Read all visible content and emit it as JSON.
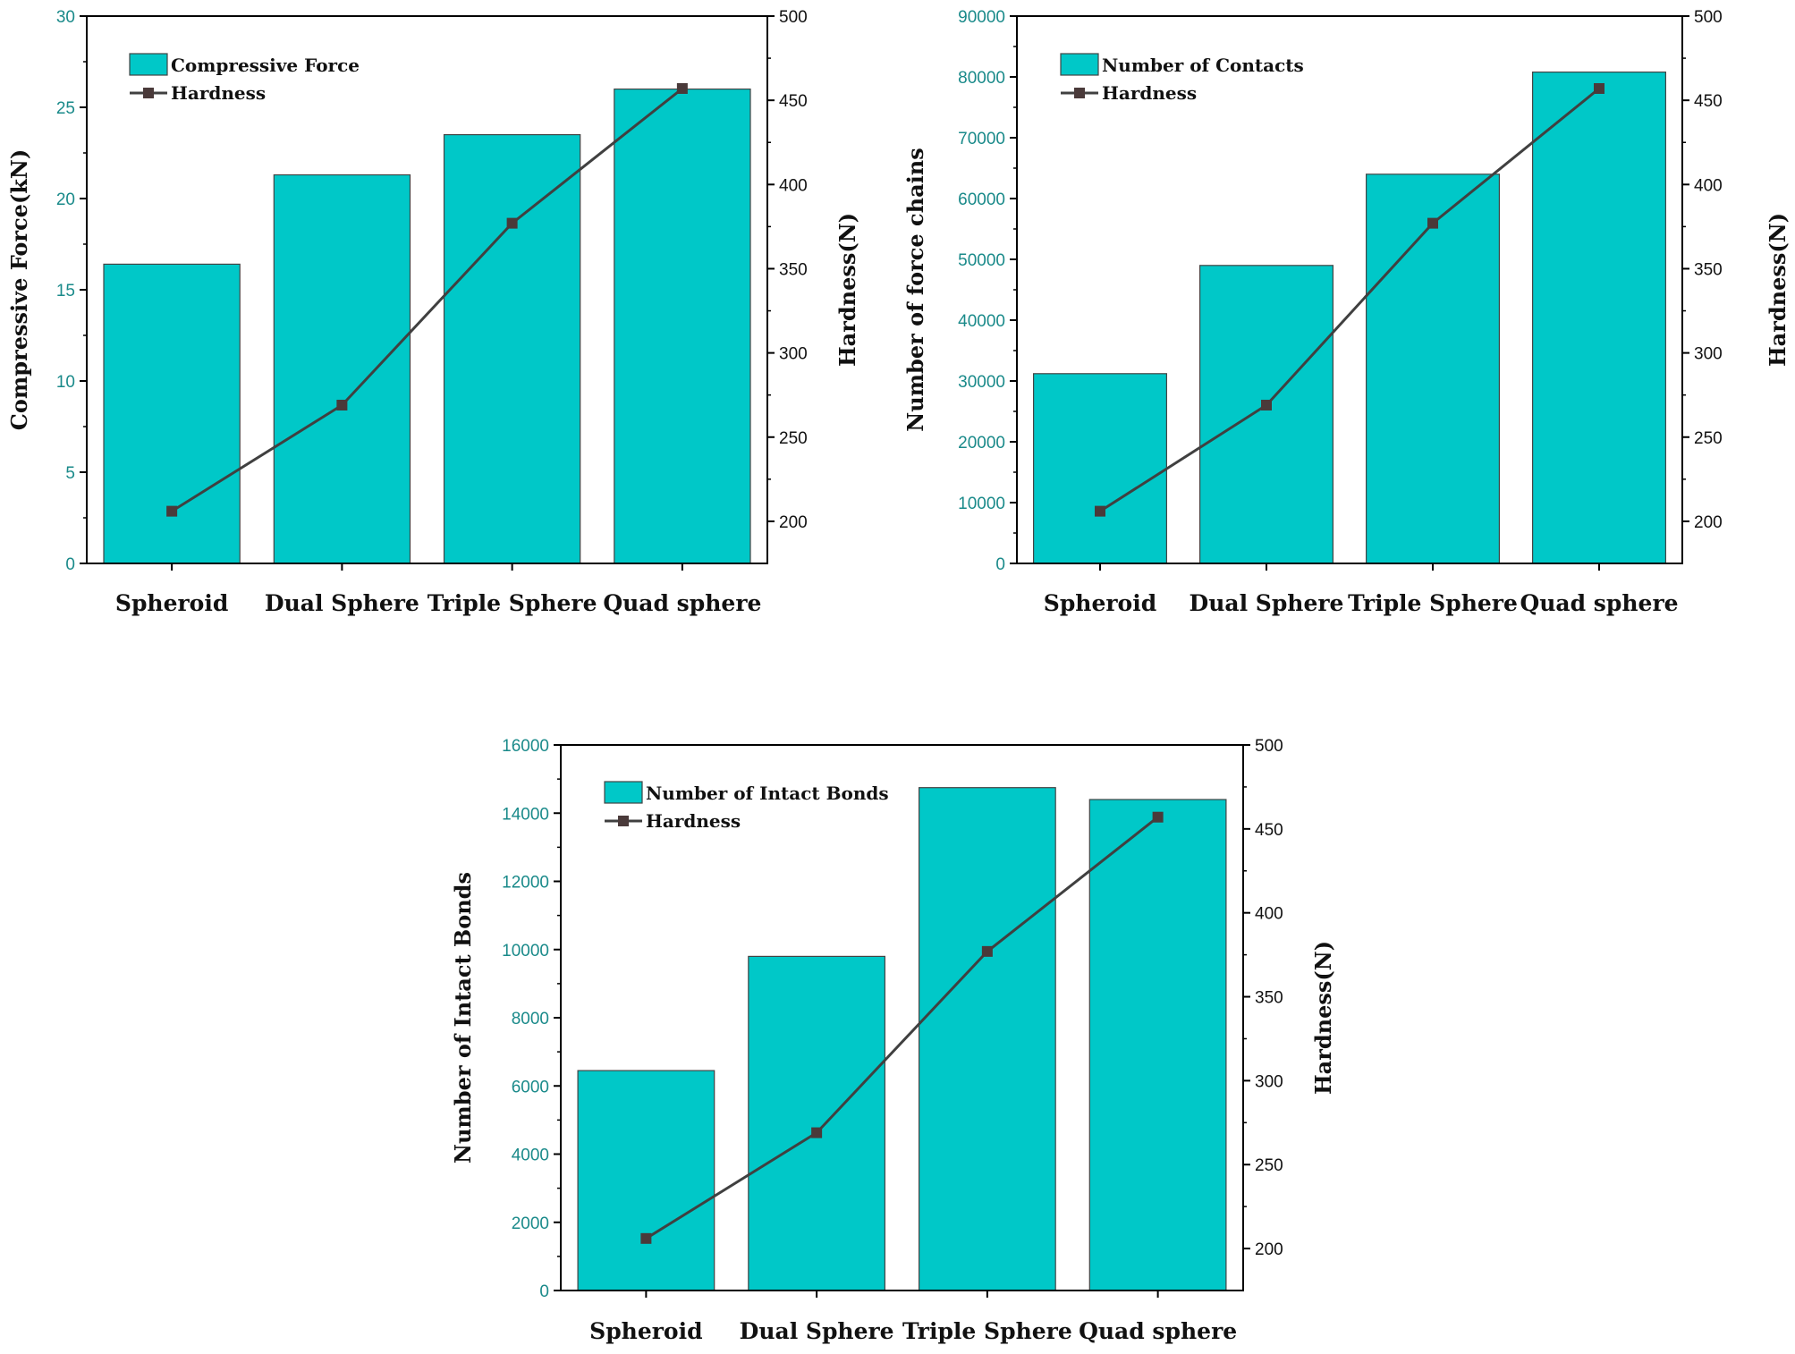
{
  "colors": {
    "bar": "#00c8c8",
    "bar_edge": "#444444",
    "line": "#404040",
    "marker": "#4a3a3a",
    "left_tick": "#1a8a8a",
    "axis": "#000000"
  },
  "chart_data": [
    {
      "type": "bar",
      "categories": [
        "Spheroid",
        "Dual Sphere",
        "Triple Sphere",
        "Quad sphere"
      ],
      "series": [
        {
          "name": "Compressive Force",
          "axis": "left",
          "values": [
            16.4,
            21.3,
            23.5,
            26.0
          ]
        },
        {
          "name": "Hardness",
          "axis": "right",
          "kind": "line",
          "values": [
            206,
            269,
            377,
            457
          ]
        }
      ],
      "ylabel": "Compressive Force(kN)",
      "y2label": "Hardness(N)",
      "ylim": [
        0,
        30
      ],
      "yticks": [
        0,
        5,
        10,
        15,
        20,
        25,
        30
      ],
      "y2lim": [
        175,
        500
      ],
      "y2ticks": [
        200,
        250,
        300,
        350,
        400,
        450,
        500
      ],
      "legend": "top-left"
    },
    {
      "type": "bar",
      "categories": [
        "Spheroid",
        "Dual Sphere",
        "Triple Sphere",
        "Quad sphere"
      ],
      "series": [
        {
          "name": "Number of Contacts",
          "axis": "left",
          "values": [
            31200,
            49000,
            64000,
            80800
          ]
        },
        {
          "name": "Hardness",
          "axis": "right",
          "kind": "line",
          "values": [
            206,
            269,
            377,
            457
          ]
        }
      ],
      "ylabel": "Number of force chains",
      "y2label": "Hardness(N)",
      "ylim": [
        0,
        90000
      ],
      "yticks": [
        0,
        10000,
        20000,
        30000,
        40000,
        50000,
        60000,
        70000,
        80000,
        90000
      ],
      "y2lim": [
        175,
        500
      ],
      "y2ticks": [
        200,
        250,
        300,
        350,
        400,
        450,
        500
      ],
      "legend": "top-left"
    },
    {
      "type": "bar",
      "categories": [
        "Spheroid",
        "Dual Sphere",
        "Triple Sphere",
        "Quad sphere"
      ],
      "series": [
        {
          "name": "Number of Intact Bonds",
          "axis": "left",
          "values": [
            6450,
            9800,
            14750,
            14400
          ]
        },
        {
          "name": "Hardness",
          "axis": "right",
          "kind": "line",
          "values": [
            206,
            269,
            377,
            457
          ]
        }
      ],
      "ylabel": "Number of Intact Bonds",
      "y2label": "Hardness(N)",
      "ylim": [
        0,
        16000
      ],
      "yticks": [
        0,
        2000,
        4000,
        6000,
        8000,
        10000,
        12000,
        14000,
        16000
      ],
      "y2lim": [
        175,
        500
      ],
      "y2ticks": [
        200,
        250,
        300,
        350,
        400,
        450,
        500
      ],
      "legend": "top-left"
    }
  ]
}
